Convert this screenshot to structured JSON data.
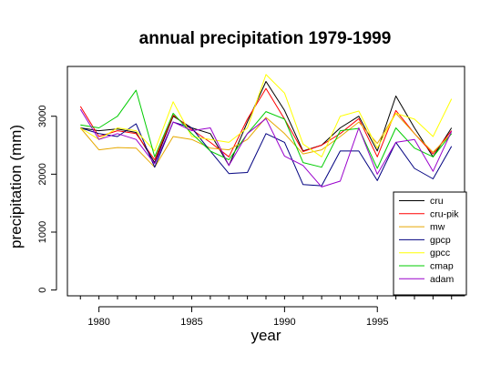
{
  "chart_data": {
    "type": "line",
    "title": "annual precipitation 1979-1999",
    "xlabel": "year",
    "ylabel": "precipitation (mm)",
    "x": [
      1979,
      1980,
      1981,
      1982,
      1983,
      1984,
      1985,
      1986,
      1987,
      1988,
      1989,
      1990,
      1991,
      1992,
      1993,
      1994,
      1995,
      1996,
      1997,
      1998,
      1999
    ],
    "xlim": [
      1978.3,
      1999.7
    ],
    "ylim": [
      -100,
      3860
    ],
    "xticks": [
      "1980",
      "1985",
      "1990",
      "1995"
    ],
    "yticks": [
      "0",
      "1000",
      "2000",
      "3000"
    ],
    "legend_position": "bottom-right",
    "grid": false,
    "series": [
      {
        "name": "cru",
        "color": "#000000",
        "values": [
          2800,
          2750,
          2780,
          2720,
          2200,
          3000,
          2800,
          2700,
          2150,
          2900,
          3600,
          3100,
          2400,
          2500,
          2800,
          3000,
          2400,
          3350,
          2800,
          2300,
          2800
        ]
      },
      {
        "name": "cru-pik",
        "color": "#ff0000",
        "values": [
          3170,
          2650,
          2750,
          2700,
          2250,
          3020,
          2770,
          2550,
          2300,
          2950,
          3480,
          2950,
          2390,
          2500,
          2700,
          2960,
          2300,
          3100,
          2700,
          2350,
          2750
        ]
      },
      {
        "name": "mw",
        "color": "#e6a800",
        "values": [
          2800,
          2420,
          2460,
          2450,
          2120,
          2650,
          2600,
          2450,
          2420,
          2600,
          2980,
          2700,
          2350,
          2420,
          2650,
          2900,
          2530,
          3050,
          2700,
          2380,
          2700
        ]
      },
      {
        "name": "gpcp",
        "color": "#000080",
        "values": [
          2800,
          2700,
          2650,
          2870,
          2120,
          2900,
          2800,
          2400,
          2010,
          2030,
          2700,
          2550,
          1820,
          1800,
          2400,
          2400,
          1890,
          2550,
          2100,
          1920,
          2480
        ]
      },
      {
        "name": "gpcc",
        "color": "#ffff00",
        "values": [
          2800,
          2600,
          2800,
          2750,
          2400,
          3250,
          2650,
          2600,
          2550,
          2800,
          3720,
          3400,
          2520,
          2300,
          3000,
          3090,
          2450,
          3050,
          2950,
          2650,
          3300
        ]
      },
      {
        "name": "cmap",
        "color": "#00cc00",
        "values": [
          2850,
          2800,
          3000,
          3450,
          2300,
          3050,
          2700,
          2400,
          2250,
          2700,
          3080,
          2950,
          2200,
          2120,
          2750,
          2790,
          2100,
          2800,
          2450,
          2300,
          2700
        ]
      },
      {
        "name": "adam",
        "color": "#9900cc",
        "values": [
          3120,
          2600,
          2700,
          2600,
          2180,
          2900,
          2750,
          2800,
          2150,
          2700,
          2960,
          2310,
          2150,
          1780,
          1880,
          2800,
          2000,
          2550,
          2600,
          2050,
          2740
        ]
      }
    ]
  }
}
